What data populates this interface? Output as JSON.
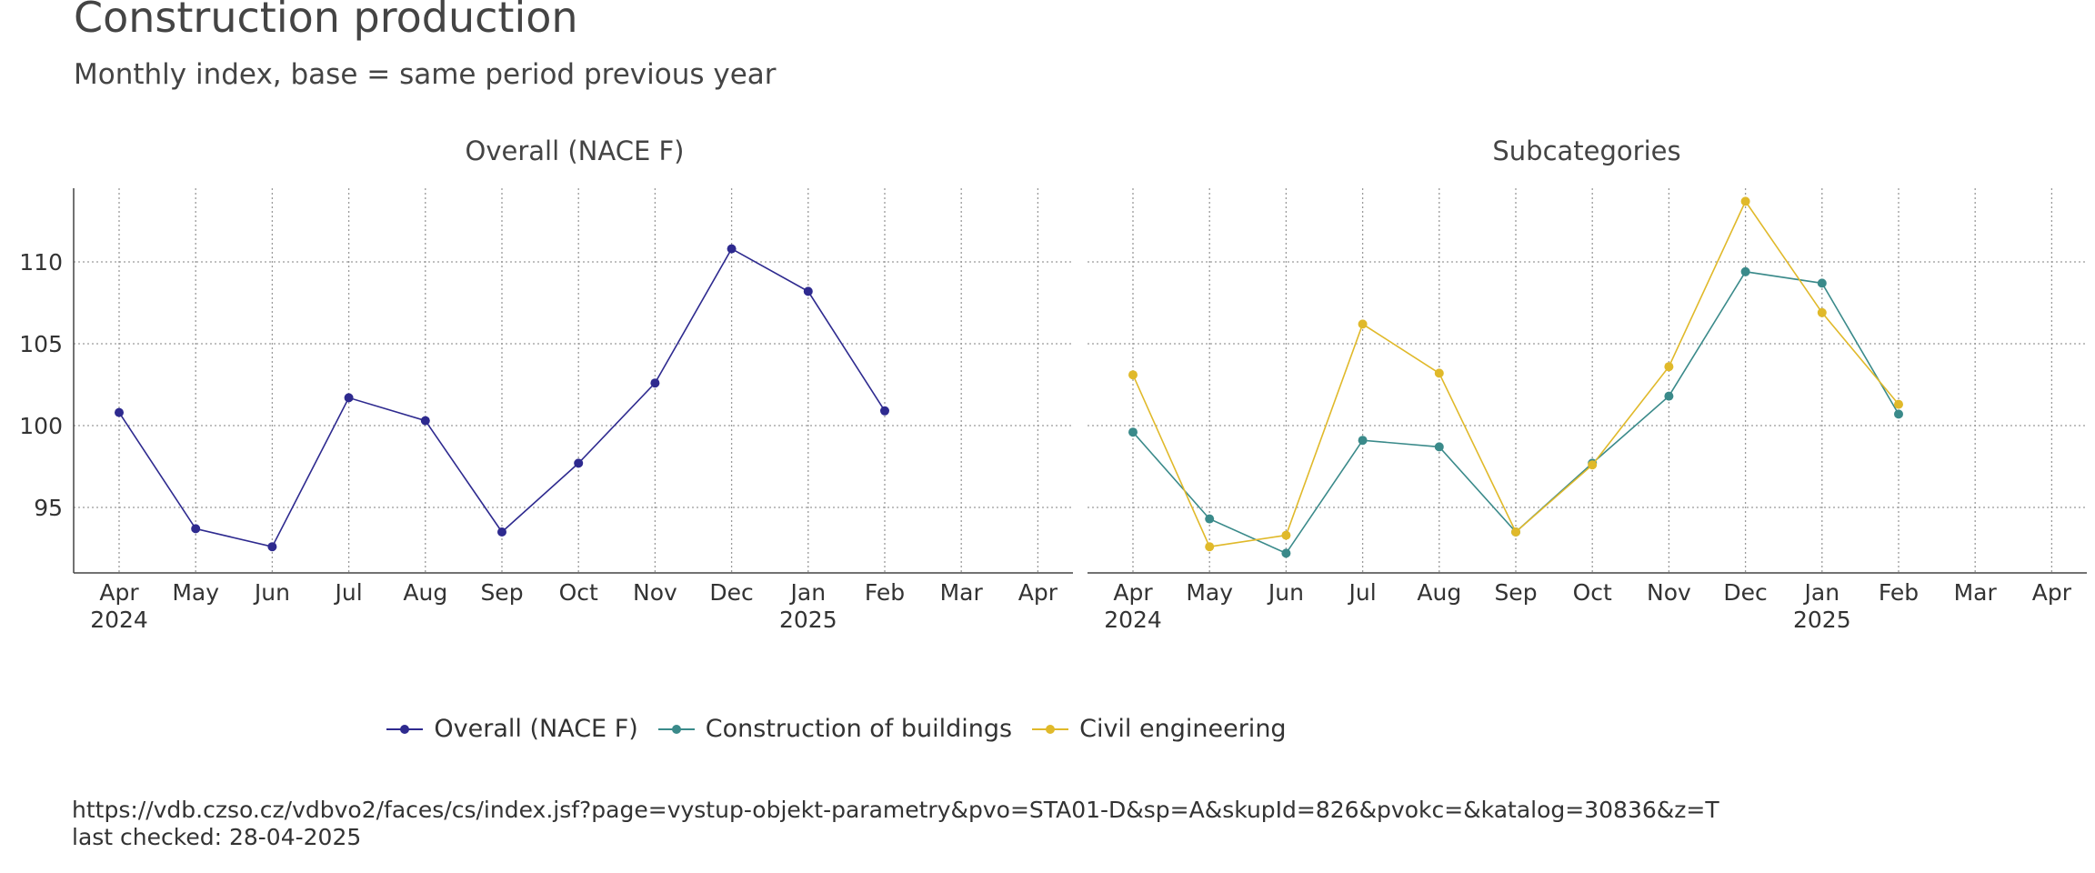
{
  "header": {
    "title": "Construction production",
    "subtitle": "Monthly index, base = same period previous year"
  },
  "caption": {
    "source": "https://vdb.czso.cz/vdbvo2/faces/cs/index.jsf?page=vystup-objekt-parametry&pvo=STA01-D&sp=A&skupId=826&pvokc=&katalog=30836&z=T",
    "checked": "last checked: 28-04-2025"
  },
  "legend": [
    {
      "label": "Overall (NACE F)",
      "color": "#2e2a8f"
    },
    {
      "label": "Construction of buildings",
      "color": "#3a8a8a"
    },
    {
      "label": "Civil engineering",
      "color": "#e0b92a"
    }
  ],
  "chart_data": [
    {
      "type": "line",
      "title": "Overall (NACE F)",
      "x_ticks": [
        "Apr",
        "May",
        "Jun",
        "Jul",
        "Aug",
        "Sep",
        "Oct",
        "Nov",
        "Dec",
        "Jan",
        "Feb",
        "Mar",
        "Apr"
      ],
      "x_year_labels": [
        {
          "index": 0,
          "label": "2024"
        },
        {
          "index": 9,
          "label": "2025"
        }
      ],
      "y_ticks": [
        95,
        100,
        105,
        110
      ],
      "ylim": [
        91,
        114.5
      ],
      "grid": true,
      "series": [
        {
          "name": "Overall (NACE F)",
          "color": "#2e2a8f",
          "values": [
            100.8,
            93.7,
            92.6,
            101.7,
            100.3,
            93.5,
            97.7,
            102.6,
            110.8,
            108.2,
            100.9
          ]
        }
      ]
    },
    {
      "type": "line",
      "title": "Subcategories",
      "x_ticks": [
        "Apr",
        "May",
        "Jun",
        "Jul",
        "Aug",
        "Sep",
        "Oct",
        "Nov",
        "Dec",
        "Jan",
        "Feb",
        "Mar",
        "Apr"
      ],
      "x_year_labels": [
        {
          "index": 0,
          "label": "2024"
        },
        {
          "index": 9,
          "label": "2025"
        }
      ],
      "y_ticks": [
        95,
        100,
        105,
        110
      ],
      "ylim": [
        91,
        114.5
      ],
      "grid": true,
      "series": [
        {
          "name": "Construction of buildings",
          "color": "#3a8a8a",
          "values": [
            99.6,
            94.3,
            92.2,
            99.1,
            98.7,
            93.5,
            97.7,
            101.8,
            109.4,
            108.7,
            100.7
          ]
        },
        {
          "name": "Civil engineering",
          "color": "#e0b92a",
          "values": [
            103.1,
            92.6,
            93.3,
            106.2,
            103.2,
            93.5,
            97.6,
            103.6,
            113.7,
            106.9,
            101.3
          ]
        }
      ]
    }
  ]
}
